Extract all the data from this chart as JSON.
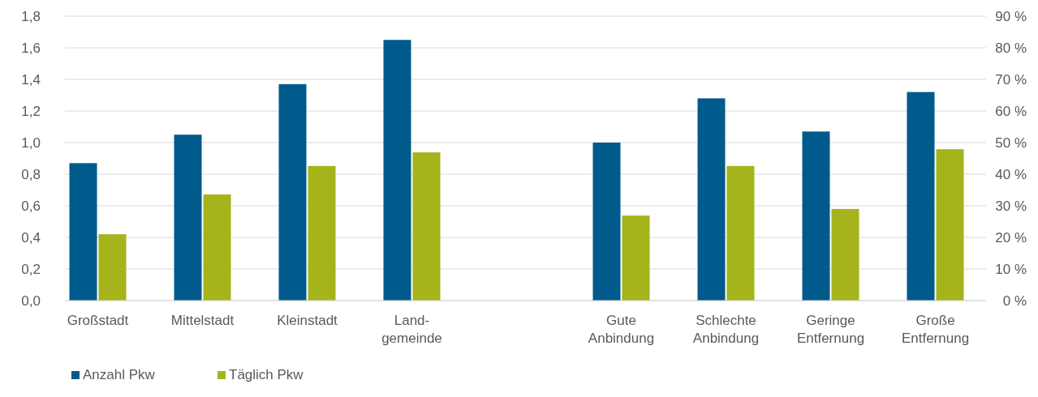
{
  "chart_data": {
    "type": "bar",
    "categories": [
      "Großstadt",
      "Mittelstadt",
      "Kleinstadt",
      "Land-\ngemeinde",
      null,
      "Gute\nAnbindung",
      "Schlechte\nAnbindung",
      "Geringe\nEntfernung",
      "Große\nEntfernung"
    ],
    "series": [
      {
        "name": "Anzahl Pkw",
        "color": "#005a8c",
        "values": [
          0.87,
          1.05,
          1.37,
          1.65,
          null,
          1.0,
          1.28,
          1.07,
          1.32
        ]
      },
      {
        "name": "Täglich Pkw",
        "color": "#a5b41a",
        "axis": "y2",
        "values": [
          21,
          33.6,
          42.6,
          46.9,
          null,
          26.9,
          42.6,
          29,
          47.9
        ]
      }
    ],
    "ylim": [
      0,
      1.8
    ],
    "yticks": [
      {
        "value": 0,
        "label": "0,0"
      },
      {
        "value": 0.2,
        "label": "0,2"
      },
      {
        "value": 0.4,
        "label": "0,4"
      },
      {
        "value": 0.6,
        "label": "0,6"
      },
      {
        "value": 0.8,
        "label": "0,8"
      },
      {
        "value": 1,
        "label": "1,0"
      },
      {
        "value": 1.2,
        "label": "1,2"
      },
      {
        "value": 1.4,
        "label": "1,4"
      },
      {
        "value": 1.6,
        "label": "1,6"
      },
      {
        "value": 1.8,
        "label": "1,8"
      }
    ],
    "y2lim": [
      0,
      90
    ],
    "y2ticks": [
      {
        "value": 0,
        "label": "0 %"
      },
      {
        "value": 10,
        "label": "10 %"
      },
      {
        "value": 20,
        "label": "20 %"
      },
      {
        "value": 30,
        "label": "30 %"
      },
      {
        "value": 40,
        "label": "40 %"
      },
      {
        "value": 50,
        "label": "50 %"
      },
      {
        "value": 60,
        "label": "60 %"
      },
      {
        "value": 70,
        "label": "70 %"
      },
      {
        "value": 80,
        "label": "80 %"
      },
      {
        "value": 90,
        "label": "90 %"
      }
    ],
    "grid": "y",
    "legend": "bottom left"
  }
}
